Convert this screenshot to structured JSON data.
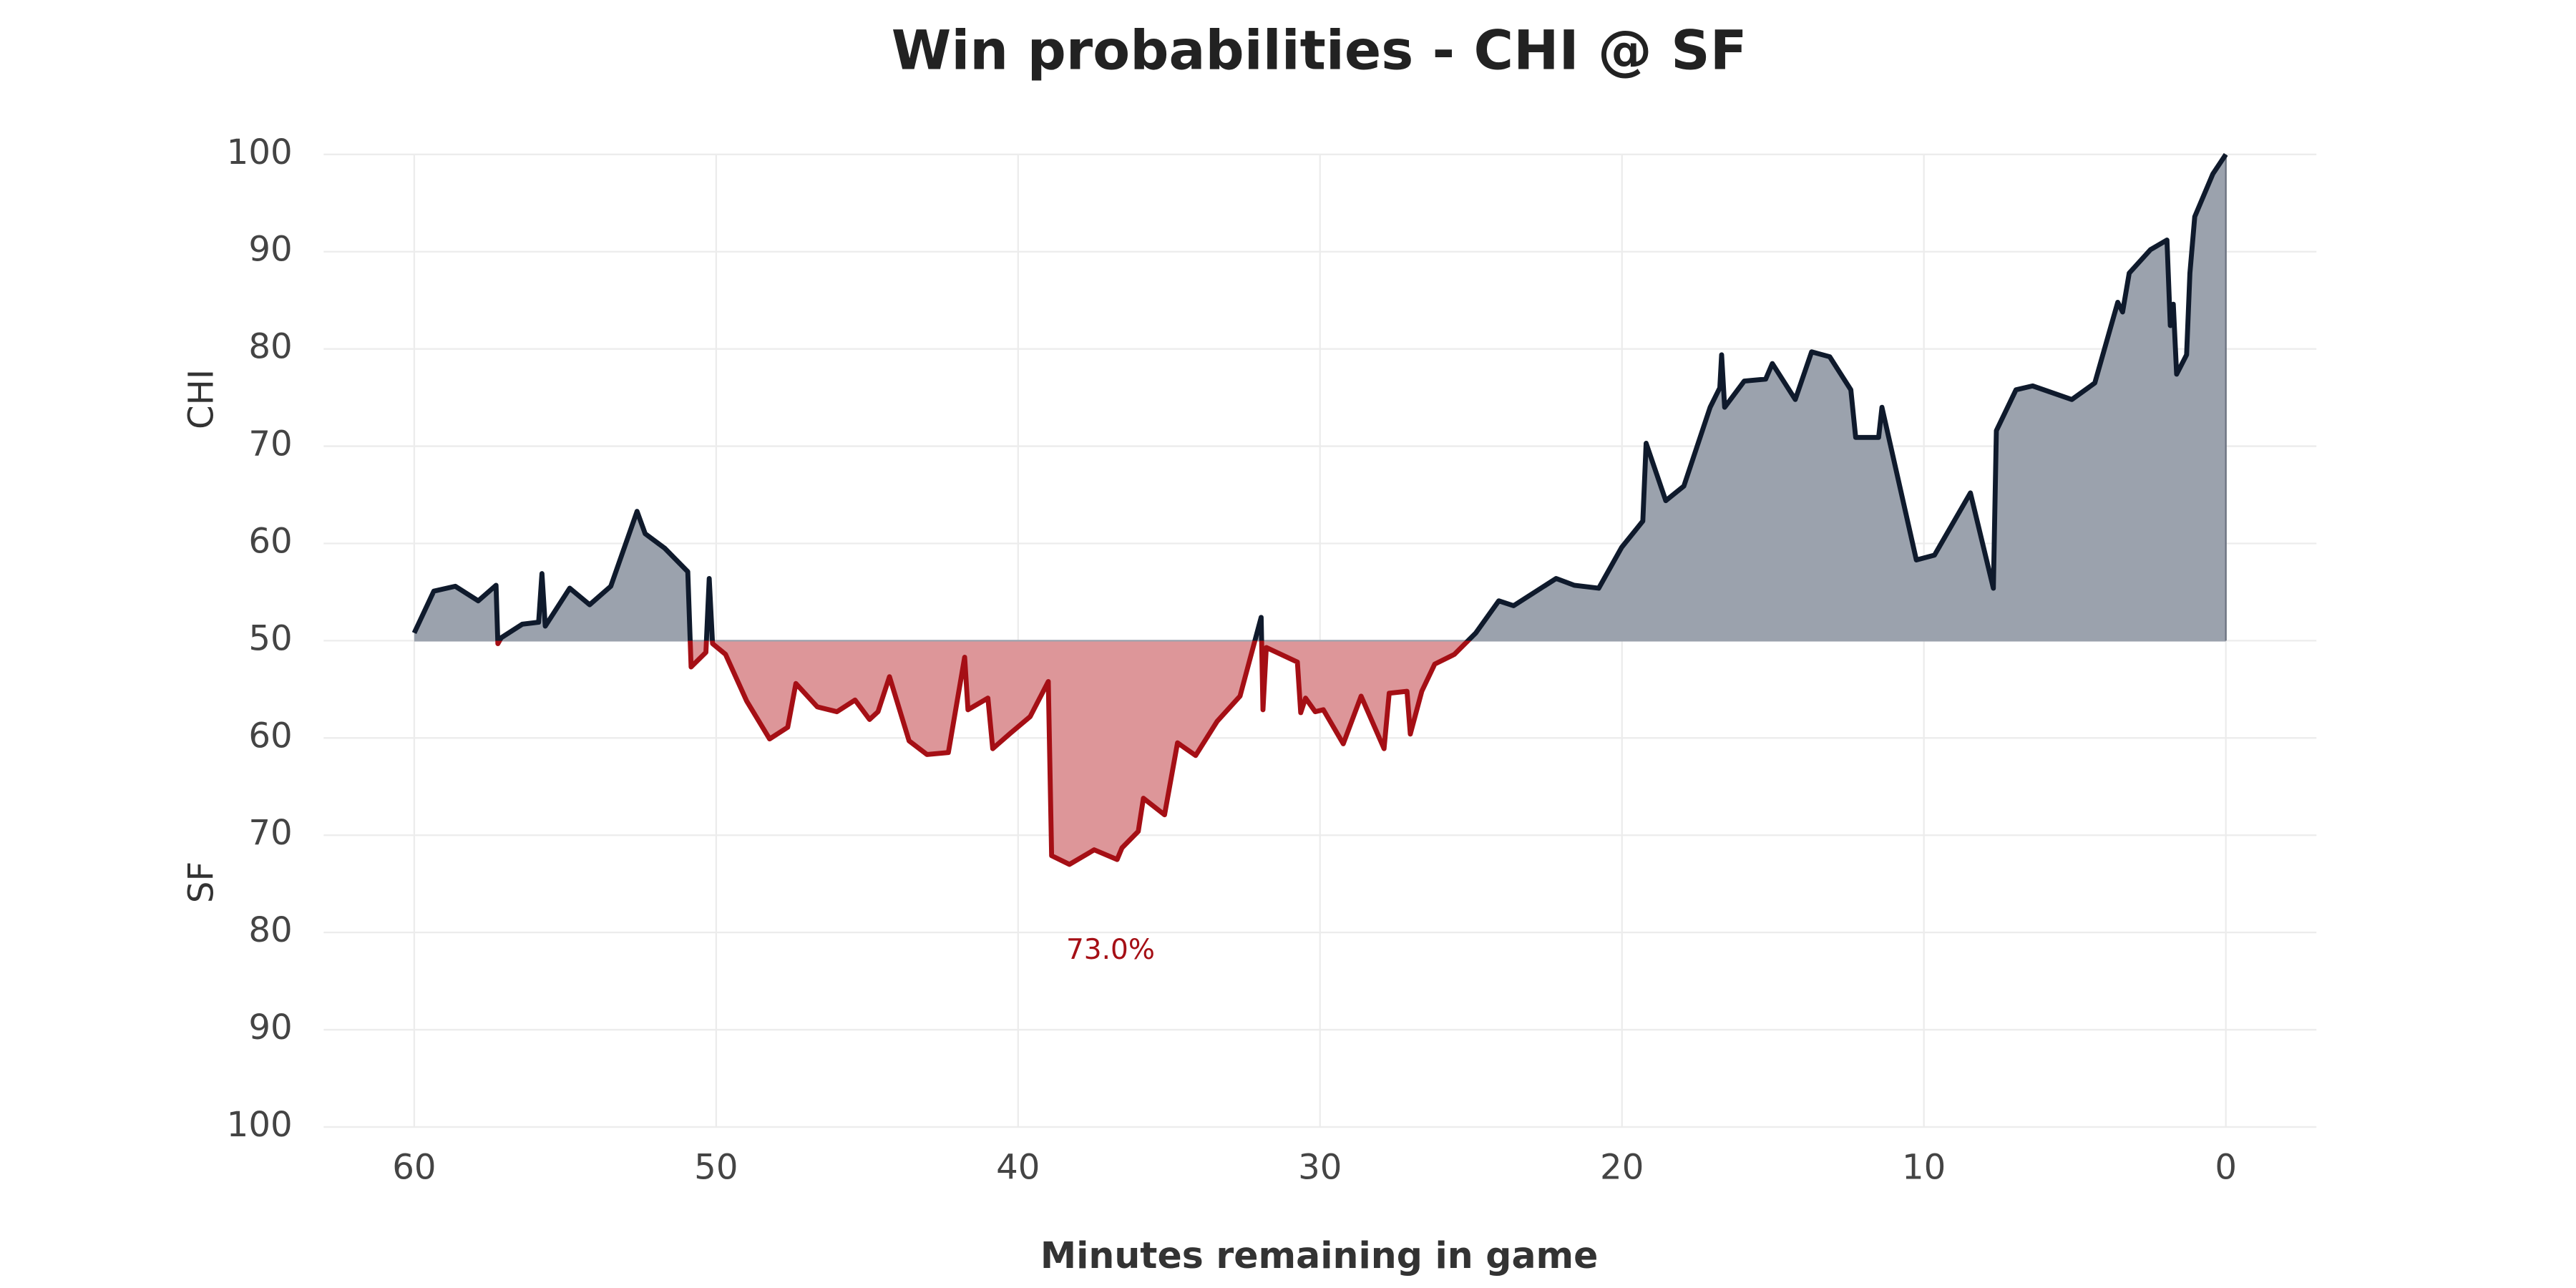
{
  "chart_data": {
    "type": "line",
    "title": "Win probabilities - CHI @ SF",
    "xlabel": "Minutes remaining in game",
    "team_labels": [
      "CHI",
      "SF"
    ],
    "annotation": "73.0%",
    "series": [
      {
        "name": "CHI",
        "color": "#0f1a2c",
        "fill": "#9ba2ad",
        "below_color": "#a50f15",
        "below_fill": "#dd9699",
        "x": [
          60,
          59.35,
          58.64,
          57.88,
          57.29,
          57.23,
          57.12,
          56.42,
          55.88,
          55.77,
          55.66,
          54.85,
          54.19,
          53.49,
          52.62,
          52.35,
          51.7,
          50.94,
          50.83,
          50.34,
          50.23,
          50.12,
          49.69,
          48.99,
          48.23,
          47.63,
          47.36,
          46.65,
          46,
          45.4,
          44.92,
          44.64,
          44.26,
          43.61,
          43.02,
          42.31,
          41.77,
          41.66,
          41,
          40.84,
          40.25,
          39.6,
          39,
          38.89,
          38.3,
          37.48,
          36.72,
          36.56,
          36.02,
          35.85,
          35.15,
          34.72,
          34.12,
          33.41,
          32.65,
          31.95,
          31.89,
          31.78,
          30.75,
          30.64,
          30.48,
          30.16,
          29.89,
          29.23,
          28.64,
          27.88,
          27.71,
          27.12,
          27.01,
          26.63,
          26.2,
          25.55,
          24.84,
          24.08,
          23.59,
          22.18,
          21.58,
          20.77,
          20.01,
          19.31,
          19.2,
          18.55,
          17.95,
          17.08,
          16.76,
          16.7,
          16.6,
          15.95,
          15.24,
          15.02,
          14.26,
          13.72,
          13.12,
          12.42,
          12.26,
          11.5,
          11.39,
          10.25,
          9.65,
          8.46,
          7.7,
          7.6,
          6.95,
          6.4,
          5.1,
          4.34,
          3.58,
          3.42,
          3.2,
          2.5,
          1.95,
          1.84,
          1.74,
          1.63,
          1.3,
          1.19,
          1.03,
          0.43,
          0
        ],
        "values": [
          50.8,
          55.1,
          55.6,
          54.1,
          55.7,
          49.7,
          50.3,
          51.7,
          51.9,
          56.9,
          51.5,
          55.4,
          53.7,
          55.6,
          63.3,
          61.0,
          59.5,
          57.1,
          47.3,
          48.8,
          56.4,
          49.7,
          48.6,
          43.8,
          39.9,
          41.1,
          45.6,
          43.2,
          42.7,
          43.9,
          41.9,
          42.7,
          46.3,
          39.7,
          38.3,
          38.5,
          48.3,
          42.9,
          44.1,
          38.9,
          40.5,
          42.2,
          45.8,
          27.9,
          27.0,
          28.5,
          27.5,
          28.7,
          30.4,
          33.8,
          32.1,
          39.5,
          38.2,
          41.7,
          44.3,
          52.4,
          42.9,
          49.3,
          47.8,
          42.6,
          44.1,
          42.7,
          42.9,
          39.4,
          44.3,
          38.9,
          44.6,
          44.8,
          40.4,
          44.8,
          47.6,
          48.6,
          50.8,
          54.1,
          53.6,
          56.4,
          55.7,
          55.4,
          59.6,
          62.3,
          70.3,
          64.4,
          65.9,
          74.0,
          76.0,
          79.4,
          74.0,
          76.7,
          76.9,
          78.5,
          74.8,
          79.7,
          79.2,
          75.8,
          70.9,
          70.9,
          74.0,
          58.3,
          58.8,
          65.2,
          55.4,
          71.6,
          75.8,
          76.2,
          74.8,
          76.5,
          84.8,
          83.8,
          87.8,
          90.2,
          91.2,
          82.4,
          84.6,
          77.4,
          79.4,
          87.8,
          93.6,
          98.0,
          100
        ]
      }
    ],
    "xlim": [
      63,
      -3
    ],
    "xticks": [
      60,
      50,
      40,
      30,
      20,
      10,
      0
    ],
    "ylim": [
      0,
      100
    ],
    "yticks": [
      100,
      90,
      80,
      70,
      60,
      50,
      {
        "value": 40,
        "label": "60"
      },
      {
        "value": 30,
        "label": "70"
      },
      {
        "value": 20,
        "label": "80"
      },
      {
        "value": 10,
        "label": "90"
      },
      {
        "value": 0,
        "label": "100"
      }
    ],
    "midline": 50,
    "grid": true
  }
}
